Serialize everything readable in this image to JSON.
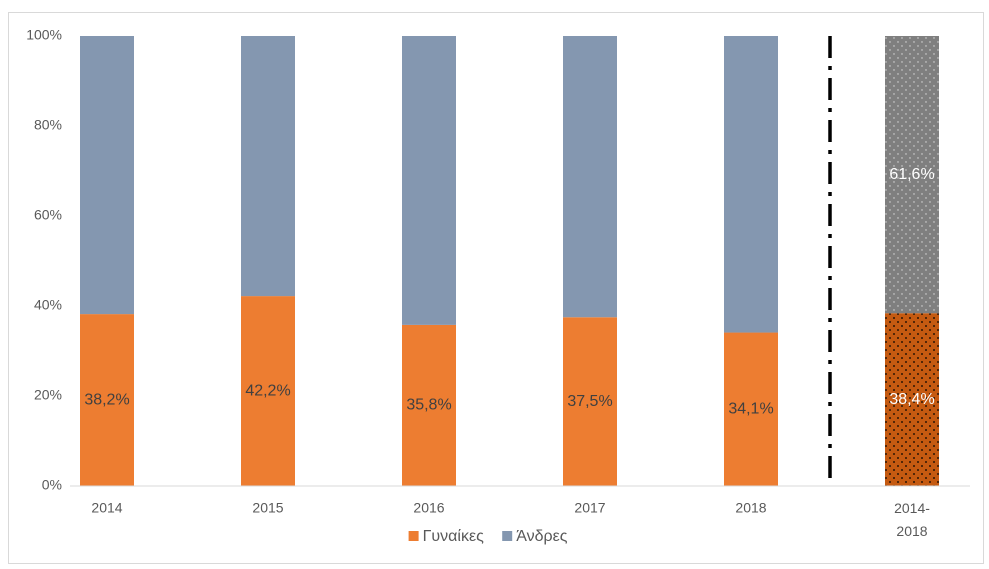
{
  "chart_data": {
    "type": "stacked_bar",
    "categories": [
      "2014",
      "2015",
      "2016",
      "2017",
      "2018",
      "2014-2018"
    ],
    "series": [
      {
        "name": "Γυναίκες",
        "color": "#ed7d31",
        "point_colors": [
          "#ed7d31",
          "#ed7d31",
          "#ed7d31",
          "#ed7d31",
          "#ed7d31",
          "#c55a11"
        ],
        "values": [
          38.2,
          42.2,
          35.8,
          37.5,
          34.1,
          38.4
        ],
        "value_labels": [
          "38,2%",
          "42,2%",
          "35,8%",
          "37,5%",
          "34,1%",
          "38,4%"
        ]
      },
      {
        "name": "Άνδρες",
        "color": "#8497b0",
        "point_colors": [
          "#8497b0",
          "#8497b0",
          "#8497b0",
          "#8497b0",
          "#8497b0",
          "#7f7f7f"
        ],
        "values": [
          61.8,
          57.8,
          64.2,
          62.5,
          65.9,
          61.6
        ],
        "value_labels": [
          null,
          null,
          null,
          null,
          null,
          "61,6%"
        ]
      }
    ],
    "ylim": [
      0,
      100
    ],
    "yticks": [
      {
        "value": 0,
        "label": "0%"
      },
      {
        "value": 20,
        "label": "20%"
      },
      {
        "value": 40,
        "label": "40%"
      },
      {
        "value": 60,
        "label": "60%"
      },
      {
        "value": 80,
        "label": "80%"
      },
      {
        "value": 100,
        "label": "100%"
      }
    ],
    "legend": "bottom"
  }
}
